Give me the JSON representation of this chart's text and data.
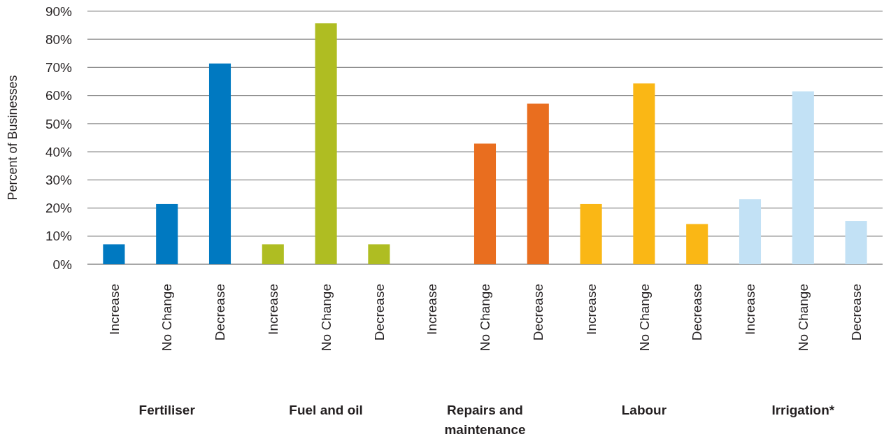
{
  "chart_data": {
    "type": "bar",
    "ylabel": "Percent of Businesses",
    "categories": [
      "Increase",
      "No Change",
      "Decrease",
      "Increase",
      "No Change",
      "Decrease",
      "Increase",
      "No Change",
      "Decrease",
      "Increase",
      "No Change",
      "Decrease",
      "Increase",
      "No Change",
      "Decrease"
    ],
    "series": [
      {
        "color": "#0079c1",
        "values": [
          7.1,
          21.4,
          71.4,
          null,
          null,
          null,
          null,
          null,
          null,
          null,
          null,
          null,
          null,
          null,
          null
        ]
      },
      {
        "color": "#afbd22",
        "values": [
          null,
          null,
          null,
          7.1,
          85.7,
          7.1,
          null,
          null,
          null,
          null,
          null,
          null,
          null,
          null,
          null
        ]
      },
      {
        "color": "#e96e1f",
        "values": [
          null,
          null,
          null,
          null,
          null,
          null,
          0,
          42.9,
          57.1,
          null,
          null,
          null,
          null,
          null,
          null
        ]
      },
      {
        "color": "#fab715",
        "values": [
          null,
          null,
          null,
          null,
          null,
          null,
          null,
          null,
          null,
          21.4,
          64.3,
          14.3,
          null,
          null,
          null
        ]
      },
      {
        "color": "#c2e1f5",
        "values": [
          null,
          null,
          null,
          null,
          null,
          null,
          null,
          null,
          null,
          null,
          null,
          null,
          23.1,
          61.5,
          15.4
        ]
      }
    ],
    "annotations": [
      "Fertiliser",
      "Fuel and oil",
      "Repairs and maintenance",
      "Labour",
      "Irrigation*"
    ],
    "ylim": [
      0,
      90
    ],
    "yticks": [
      {
        "value": 0,
        "label": "0%"
      },
      {
        "value": 10,
        "label": "10%"
      },
      {
        "value": 20,
        "label": "20%"
      },
      {
        "value": 30,
        "label": "30%"
      },
      {
        "value": 40,
        "label": "40%"
      },
      {
        "value": 50,
        "label": "50%"
      },
      {
        "value": 60,
        "label": "60%"
      },
      {
        "value": 70,
        "label": "70%"
      },
      {
        "value": 80,
        "label": "80%"
      },
      {
        "value": 90,
        "label": "90%"
      }
    ],
    "grid": "y"
  }
}
